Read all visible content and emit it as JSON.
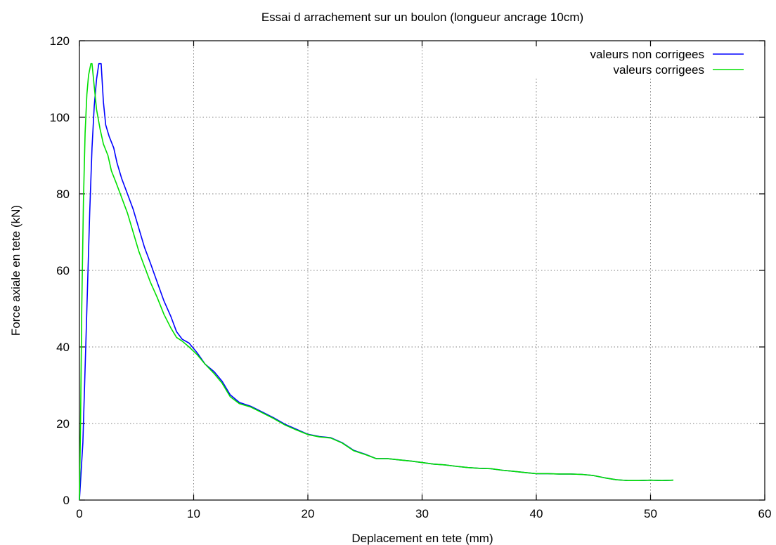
{
  "chart_data": {
    "type": "line",
    "title": "Essai d arrachement sur un boulon (longueur ancrage 10cm)",
    "xlabel": "Deplacement en tete (mm)",
    "ylabel": "Force axiale en tete (kN)",
    "xlim": [
      0,
      60
    ],
    "ylim": [
      0,
      120
    ],
    "x_ticks": [
      0,
      10,
      20,
      30,
      40,
      50,
      60
    ],
    "y_ticks": [
      0,
      20,
      40,
      60,
      80,
      100,
      120
    ],
    "grid": true,
    "legend_position": "top-right",
    "series": [
      {
        "name": "valeurs non corrigees",
        "color": "#0000ff",
        "points": [
          [
            0,
            0
          ],
          [
            0.3,
            15
          ],
          [
            0.6,
            45
          ],
          [
            0.9,
            75
          ],
          [
            1.1,
            92
          ],
          [
            1.3,
            103
          ],
          [
            1.5,
            110
          ],
          [
            1.7,
            114
          ],
          [
            1.9,
            114
          ],
          [
            2.1,
            104
          ],
          [
            2.3,
            98
          ],
          [
            2.6,
            95
          ],
          [
            3.0,
            92
          ],
          [
            3.3,
            88
          ],
          [
            3.7,
            84
          ],
          [
            4.2,
            80
          ],
          [
            4.7,
            76
          ],
          [
            5.2,
            71
          ],
          [
            5.7,
            66
          ],
          [
            6.2,
            62
          ],
          [
            6.8,
            57
          ],
          [
            7.4,
            52
          ],
          [
            8.0,
            48
          ],
          [
            8.5,
            44
          ],
          [
            9.0,
            42
          ],
          [
            9.6,
            41
          ],
          [
            10.3,
            38.5
          ],
          [
            11.0,
            35.5
          ],
          [
            11.8,
            33.5
          ],
          [
            12.5,
            31
          ],
          [
            13.2,
            27.5
          ],
          [
            14.0,
            25.5
          ],
          [
            15.0,
            24.5
          ],
          [
            16.0,
            23
          ],
          [
            17.0,
            21.5
          ],
          [
            18.0,
            19.8
          ],
          [
            19.0,
            18.5
          ],
          [
            20.0,
            17.2
          ],
          [
            21.0,
            16.6
          ],
          [
            22.0,
            16.3
          ],
          [
            23.0,
            15
          ],
          [
            24.0,
            13
          ],
          [
            25.0,
            12
          ],
          [
            26.0,
            10.8
          ],
          [
            27.0,
            10.8
          ],
          [
            28.0,
            10.5
          ],
          [
            29.0,
            10.2
          ],
          [
            30.0,
            9.8
          ],
          [
            31.0,
            9.4
          ],
          [
            32.0,
            9.2
          ],
          [
            33.0,
            8.8
          ],
          [
            34.0,
            8.5
          ],
          [
            35.0,
            8.3
          ],
          [
            36.0,
            8.2
          ],
          [
            37.0,
            7.8
          ],
          [
            38.0,
            7.5
          ],
          [
            39.0,
            7.2
          ],
          [
            40.0,
            6.9
          ],
          [
            41.0,
            6.9
          ],
          [
            42.0,
            6.8
          ],
          [
            43.0,
            6.8
          ],
          [
            44.0,
            6.7
          ],
          [
            45.0,
            6.4
          ],
          [
            46.0,
            5.8
          ],
          [
            47.0,
            5.3
          ],
          [
            48.0,
            5.1
          ],
          [
            49.0,
            5.1
          ],
          [
            50.0,
            5.2
          ],
          [
            51.0,
            5.1
          ],
          [
            52.0,
            5.2
          ]
        ]
      },
      {
        "name": "valeurs corrigees",
        "color": "#00e000",
        "points": [
          [
            0,
            0
          ],
          [
            0.1,
            20
          ],
          [
            0.2,
            50
          ],
          [
            0.35,
            78
          ],
          [
            0.5,
            96
          ],
          [
            0.65,
            106
          ],
          [
            0.8,
            111
          ],
          [
            1.0,
            114
          ],
          [
            1.1,
            114
          ],
          [
            1.3,
            108
          ],
          [
            1.5,
            102
          ],
          [
            1.8,
            97
          ],
          [
            2.1,
            93
          ],
          [
            2.5,
            90
          ],
          [
            2.8,
            86
          ],
          [
            3.2,
            83
          ],
          [
            3.7,
            79
          ],
          [
            4.2,
            75
          ],
          [
            4.7,
            70
          ],
          [
            5.2,
            65
          ],
          [
            5.7,
            61
          ],
          [
            6.2,
            57
          ],
          [
            6.8,
            53
          ],
          [
            7.4,
            48.5
          ],
          [
            8.0,
            45
          ],
          [
            8.5,
            42.5
          ],
          [
            9.0,
            41.5
          ],
          [
            9.6,
            40
          ],
          [
            10.3,
            38
          ],
          [
            11.0,
            35.5
          ],
          [
            11.8,
            33
          ],
          [
            12.5,
            30.5
          ],
          [
            13.2,
            27
          ],
          [
            14.0,
            25.2
          ],
          [
            15.0,
            24.3
          ],
          [
            16.0,
            22.8
          ],
          [
            17.0,
            21.3
          ],
          [
            18.0,
            19.6
          ],
          [
            19.0,
            18.3
          ],
          [
            20.0,
            17.1
          ],
          [
            21.0,
            16.5
          ],
          [
            22.0,
            16.2
          ],
          [
            23.0,
            14.9
          ],
          [
            24.0,
            12.9
          ],
          [
            25.0,
            11.9
          ],
          [
            26.0,
            10.8
          ],
          [
            27.0,
            10.8
          ],
          [
            28.0,
            10.5
          ],
          [
            29.0,
            10.2
          ],
          [
            30.0,
            9.8
          ],
          [
            31.0,
            9.4
          ],
          [
            32.0,
            9.2
          ],
          [
            33.0,
            8.8
          ],
          [
            34.0,
            8.5
          ],
          [
            35.0,
            8.3
          ],
          [
            36.0,
            8.2
          ],
          [
            37.0,
            7.8
          ],
          [
            38.0,
            7.5
          ],
          [
            39.0,
            7.2
          ],
          [
            40.0,
            6.9
          ],
          [
            41.0,
            6.9
          ],
          [
            42.0,
            6.8
          ],
          [
            43.0,
            6.8
          ],
          [
            44.0,
            6.7
          ],
          [
            45.0,
            6.4
          ],
          [
            46.0,
            5.8
          ],
          [
            47.0,
            5.3
          ],
          [
            48.0,
            5.1
          ],
          [
            49.0,
            5.1
          ],
          [
            50.0,
            5.2
          ],
          [
            51.0,
            5.1
          ],
          [
            52.0,
            5.2
          ]
        ]
      }
    ]
  }
}
